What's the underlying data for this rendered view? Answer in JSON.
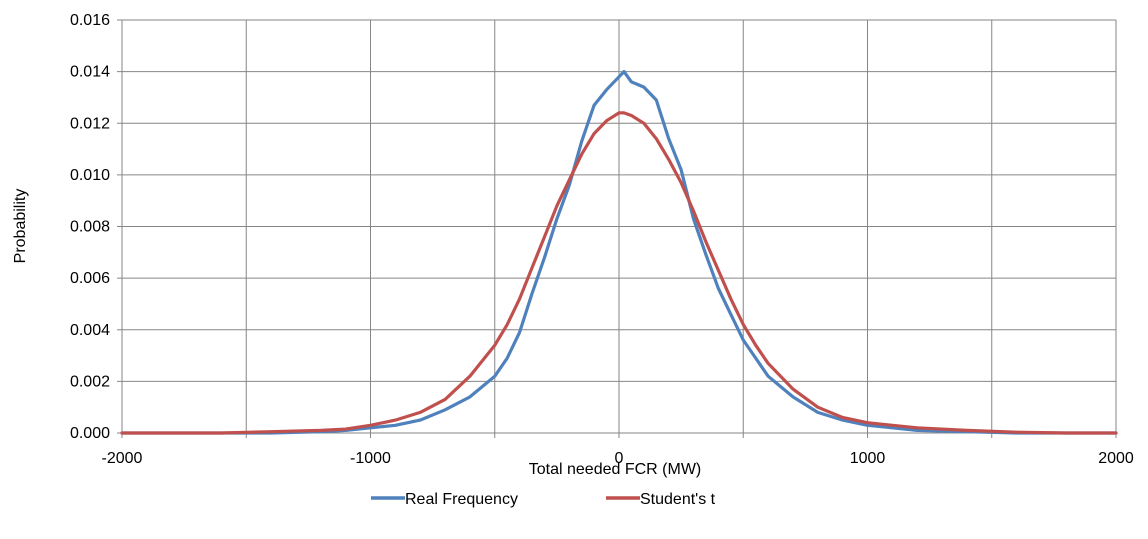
{
  "chart_data": {
    "type": "line",
    "title": "",
    "xlabel": "Total needed FCR (MW)",
    "ylabel": "Probability",
    "xlim": [
      -2000,
      2000
    ],
    "ylim": [
      0,
      0.016
    ],
    "x_ticks": [
      "-2000",
      "-1000",
      "0",
      "1000",
      "2000"
    ],
    "y_ticks": [
      "0.000",
      "0.002",
      "0.004",
      "0.006",
      "0.008",
      "0.010",
      "0.012",
      "0.014",
      "0.016"
    ],
    "x_tick_values": [
      -2000,
      -1000,
      0,
      1000,
      2000
    ],
    "y_tick_values": [
      0,
      0.002,
      0.004,
      0.006,
      0.008,
      0.01,
      0.012,
      0.014,
      0.016
    ],
    "grid": true,
    "legend_position": "bottom",
    "series": [
      {
        "name": "Real Frequency",
        "color": "#4F81BD",
        "x": [
          -2000,
          -1800,
          -1600,
          -1400,
          -1200,
          -1100,
          -1000,
          -900,
          -800,
          -700,
          -600,
          -500,
          -450,
          -400,
          -350,
          -300,
          -250,
          -200,
          -150,
          -100,
          -50,
          0,
          20,
          50,
          100,
          150,
          200,
          250,
          300,
          350,
          400,
          450,
          500,
          550,
          600,
          700,
          800,
          900,
          1000,
          1100,
          1200,
          1400,
          1600,
          1800,
          2000
        ],
        "y": [
          0.0,
          0.0,
          0.0,
          0.0,
          5e-05,
          0.0001,
          0.0002,
          0.0003,
          0.0005,
          0.0009,
          0.0014,
          0.0022,
          0.0029,
          0.0039,
          0.0054,
          0.0068,
          0.0083,
          0.0096,
          0.0113,
          0.0127,
          0.0133,
          0.0138,
          0.014,
          0.0136,
          0.0134,
          0.0129,
          0.0114,
          0.0102,
          0.0083,
          0.0069,
          0.0056,
          0.0046,
          0.0036,
          0.0029,
          0.0022,
          0.0014,
          0.0008,
          0.0005,
          0.0003,
          0.0002,
          0.0001,
          5e-05,
          0.0,
          0.0,
          0.0
        ]
      },
      {
        "name": "Student's t",
        "color": "#C0504D",
        "x": [
          -2000,
          -1800,
          -1600,
          -1400,
          -1200,
          -1100,
          -1000,
          -900,
          -800,
          -700,
          -600,
          -500,
          -450,
          -400,
          -350,
          -300,
          -250,
          -200,
          -150,
          -100,
          -50,
          0,
          20,
          50,
          100,
          150,
          200,
          250,
          300,
          350,
          400,
          450,
          500,
          550,
          600,
          700,
          800,
          900,
          1000,
          1100,
          1200,
          1400,
          1600,
          1800,
          2000
        ],
        "y": [
          0.0,
          0.0,
          0.0,
          5e-05,
          0.0001,
          0.00015,
          0.0003,
          0.0005,
          0.0008,
          0.0013,
          0.0022,
          0.0034,
          0.0042,
          0.0052,
          0.0064,
          0.0076,
          0.0088,
          0.0098,
          0.0108,
          0.0116,
          0.0121,
          0.0124,
          0.0124,
          0.0123,
          0.012,
          0.0114,
          0.0106,
          0.0097,
          0.0086,
          0.0074,
          0.0063,
          0.0052,
          0.0042,
          0.0034,
          0.0027,
          0.0017,
          0.001,
          0.0006,
          0.0004,
          0.0003,
          0.0002,
          0.0001,
          3e-05,
          0.0,
          0.0
        ]
      }
    ]
  }
}
